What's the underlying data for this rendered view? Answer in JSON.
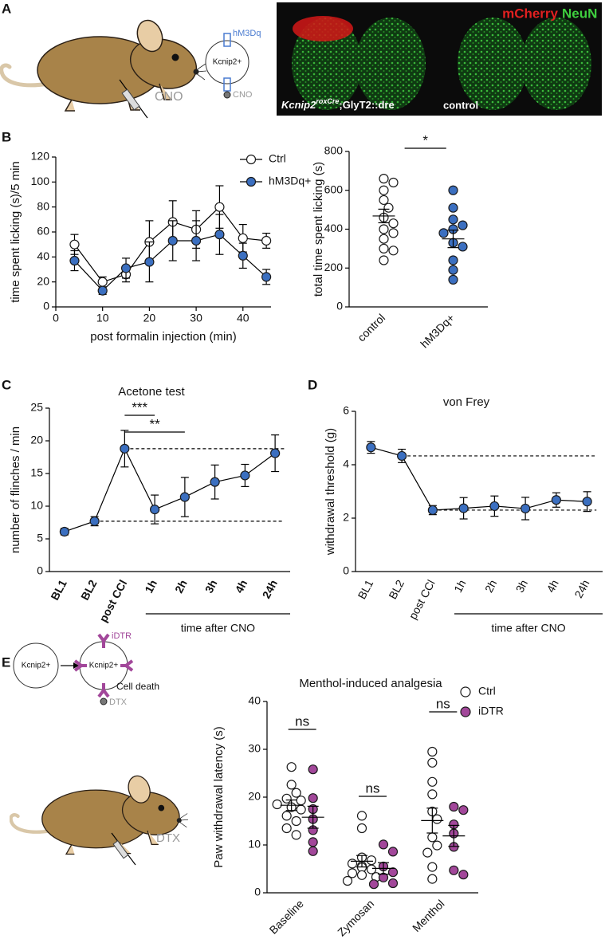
{
  "panel_labels": [
    "A",
    "B",
    "C",
    "D",
    "E"
  ],
  "illustration": {
    "receptor_a": "hM3Dq",
    "cell_a": "Kcnip2+",
    "drug_a": "CNO",
    "injection_a": "CNO",
    "stain_1": "mCherry",
    "stain_2": "NeuN",
    "genotype_gene": "Kcnip2",
    "genotype_sup": "roxCre",
    "genotype_rest": ";GlyT2::dre",
    "control_image": "control",
    "cell_e1": "Kcnip2+",
    "cell_e2": "Kcnip2+",
    "receptor_e": "iDTR",
    "cell_death": "Cell death",
    "drug_e": "DTX",
    "injection_e": "DTX"
  },
  "chart_data": [
    {
      "type": "line",
      "ylabel": "time spent licking (s)/5 min",
      "xlabel": "post formalin injection (min)",
      "x": [
        4,
        10,
        15,
        20,
        25,
        30,
        35,
        40,
        45
      ],
      "xlim": [
        0,
        46
      ],
      "xticks": [
        0,
        10,
        20,
        30,
        40
      ],
      "ylim": [
        0,
        120
      ],
      "yticks": [
        0,
        20,
        40,
        60,
        80,
        100,
        120
      ],
      "series": [
        {
          "name": "Ctrl",
          "color": "#ffffff",
          "values": [
            50,
            20,
            26,
            52,
            68,
            62,
            80,
            55,
            53
          ],
          "errors": [
            8,
            4,
            6,
            17,
            17,
            15,
            17,
            11,
            6
          ]
        },
        {
          "name": "hM3Dq+",
          "color": "#3b6fc0",
          "values": [
            37,
            13,
            31,
            36,
            53,
            53,
            58,
            41,
            24
          ],
          "errors": [
            8,
            3,
            8,
            16,
            16,
            16,
            16,
            10,
            6
          ]
        }
      ]
    },
    {
      "type": "dot",
      "ylabel": "total time spent licking (s)",
      "categories": [
        "control",
        "hM3Dq+"
      ],
      "ylim": [
        0,
        800
      ],
      "yticks": [
        0,
        200,
        400,
        600,
        800
      ],
      "series": [
        {
          "colors": [
            "#ffffff",
            "#3b6fc0"
          ],
          "points": [
            [
              660,
              640,
              600,
              550,
              510,
              460,
              430,
              400,
              380,
              350,
              300,
              290,
              240
            ],
            [
              600,
              510,
              450,
              420,
              400,
              380,
              330,
              310,
              240,
              190,
              140
            ]
          ],
          "means": [
            468,
            350
          ],
          "sems": [
            35,
            45
          ]
        }
      ],
      "brackets": [
        {
          "label": "*",
          "from": "control",
          "to": "hM3Dq+"
        }
      ]
    },
    {
      "type": "line",
      "title": "Acetone test",
      "ylabel": "number of flinches / min",
      "categories": [
        "BL1",
        "BL2",
        "post CCl",
        "1h",
        "2h",
        "3h",
        "4h",
        "24h"
      ],
      "ylim": [
        0,
        25
      ],
      "yticks": [
        0,
        5,
        10,
        15,
        20,
        25
      ],
      "series": [
        {
          "color": "#3b6fc0",
          "values": [
            6.1,
            7.7,
            18.8,
            9.5,
            11.4,
            13.7,
            14.7,
            18.1
          ],
          "errors": [
            0.5,
            0.7,
            2.8,
            2.2,
            3,
            2.6,
            1.7,
            2.8
          ]
        }
      ],
      "reference_lines": [
        {
          "from": "post CCl",
          "to": "24h"
        },
        {
          "from": "BL2",
          "to": "24h"
        }
      ],
      "brackets": [
        {
          "label": "***",
          "from": "post CCl",
          "to": "1h"
        },
        {
          "label": "**",
          "from": "post CCl",
          "to": "2h"
        }
      ],
      "group_label": {
        "text": "time after CNO",
        "from": "1h",
        "to": "24h"
      }
    },
    {
      "type": "line",
      "title": "von Frey",
      "ylabel": "withdrawal threshold (g)",
      "categories": [
        "BL1",
        "BL2",
        "post CCl",
        "1h",
        "2h",
        "3h",
        "4h",
        "24h"
      ],
      "ylim": [
        0,
        6
      ],
      "yticks": [
        0,
        2,
        4,
        6
      ],
      "series": [
        {
          "color": "#3b6fc0",
          "values": [
            4.65,
            4.33,
            2.3,
            2.37,
            2.45,
            2.36,
            2.68,
            2.62
          ],
          "errors": [
            0.22,
            0.25,
            0.17,
            0.4,
            0.38,
            0.42,
            0.27,
            0.37
          ]
        }
      ],
      "reference_lines": [
        {
          "from": "BL2",
          "to": "24h"
        },
        {
          "from": "post CCl",
          "to": "24h"
        }
      ],
      "group_label": {
        "text": "time after CNO",
        "from": "1h",
        "to": "24h"
      }
    },
    {
      "type": "dot",
      "title": "Menthol-induced analgesia",
      "ylabel": "Paw withdrawal latency (s)",
      "categories": [
        "Baseline",
        "Zymosan",
        "Menthol"
      ],
      "ylim": [
        0,
        40
      ],
      "yticks": [
        0,
        10,
        20,
        30,
        40
      ],
      "series": [
        {
          "name": "Ctrl",
          "color": "#ffffff",
          "points": [
            [
              26.3,
              22.6,
              20.9,
              19.7,
              19.3,
              18.5,
              17.9,
              17.4,
              16.1,
              15,
              13.5,
              12.1
            ],
            [
              16.1,
              13.5,
              7.4,
              6.8,
              6.1,
              5.6,
              5.3,
              4.9,
              4.1,
              3.7,
              3.3,
              2.5
            ],
            [
              29.5,
              27.2,
              23.2,
              20.6,
              17,
              15.4,
              11.6,
              9.9,
              8.4,
              5.4,
              2.9
            ]
          ],
          "means": [
            18.3,
            6.6,
            15.1
          ],
          "sems": [
            1.1,
            1.2,
            2.6
          ]
        },
        {
          "name": "iDTR",
          "color": "#a2479a",
          "points": [
            [
              25.8,
              19.8,
              17.5,
              15.4,
              13.1,
              10.6,
              8.7
            ],
            [
              10.1,
              8.6,
              5.5,
              4.3,
              3.2,
              2,
              1.8
            ],
            [
              18,
              17.3,
              14.3,
              12.4,
              9.6,
              4.7,
              3.8
            ]
          ],
          "means": [
            15.8,
            5.1,
            11.9
          ],
          "sems": [
            2.3,
            1.2,
            2.2
          ]
        }
      ],
      "brackets": [
        {
          "label": "ns",
          "from": "Baseline",
          "to": "Baseline"
        },
        {
          "label": "ns",
          "from": "Zymosan",
          "to": "Zymosan"
        },
        {
          "label": "ns",
          "from": "Menthol",
          "to": "Menthol"
        }
      ]
    }
  ]
}
